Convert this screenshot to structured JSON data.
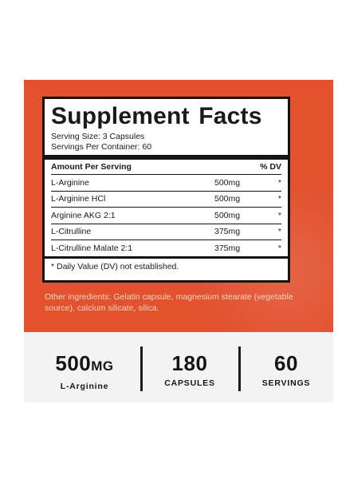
{
  "facts": {
    "title": "Supplement Facts",
    "serving_size": "Serving Size: 3 Capsules",
    "servings_per_container": "Servings Per Container: 60",
    "amount_header": "Amount Per Serving",
    "dv_header": "% DV",
    "rows": [
      {
        "name": "L-Arginine",
        "amount": "500mg",
        "dv": "*"
      },
      {
        "name": "L-Arginine HCl",
        "amount": "500mg",
        "dv": "*"
      },
      {
        "name": "Arginine AKG 2:1",
        "amount": "500mg",
        "dv": "*"
      },
      {
        "name": "L-Citrulline",
        "amount": "375mg",
        "dv": "*"
      },
      {
        "name": "L-Citrulline Malate 2:1",
        "amount": "375mg",
        "dv": "*"
      }
    ],
    "footnote": "* Daily Value (DV) not established."
  },
  "other_ingredients": "Other ingredients: Gelatin capsule, magnesium stearate (vegetable source), calcium silicate, silica.",
  "stats": {
    "dose": {
      "value": "500",
      "unit": "MG",
      "label": "L-Arginine"
    },
    "capsules": {
      "value": "180",
      "label": "CAPSULES"
    },
    "servings": {
      "value": "60",
      "label": "SERVINGS"
    }
  },
  "colors": {
    "panel": "#e2522f",
    "text": "#141414",
    "stats_bg": "#f3f3f3"
  }
}
